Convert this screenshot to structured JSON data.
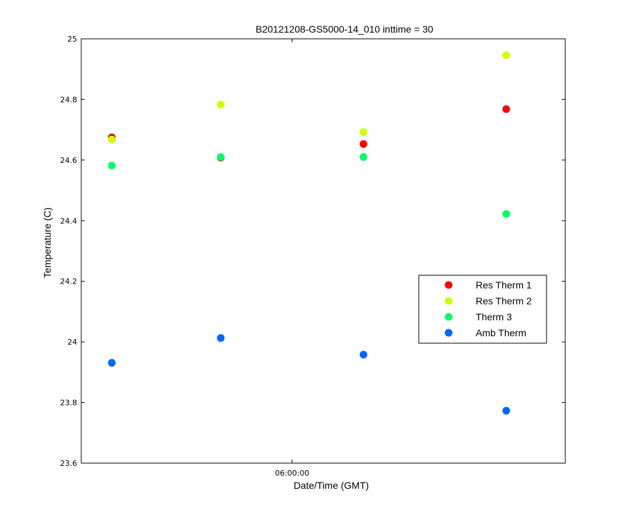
{
  "chart_data": {
    "type": "scatter",
    "title": "B20121208-GS5000-14_010 inttime = 30",
    "xlabel": "Date/Time (GMT)",
    "ylabel": "Temperature (C)",
    "ylim": [
      23.6,
      25.0
    ],
    "yticks": [
      "23.6",
      "23.8",
      "24",
      "24.2",
      "24.4",
      "24.6",
      "24.8",
      "25"
    ],
    "xticks": [
      "06:00:00"
    ],
    "x": [
      "05:12:00",
      "05:41:00",
      "06:19:00",
      "06:57:00"
    ],
    "grid": false,
    "legend_position": "right",
    "series": [
      {
        "name": "Res Therm 1",
        "color": "#ff0000",
        "values": [
          24.675,
          24.608,
          24.653,
          24.768
        ]
      },
      {
        "name": "Res Therm 2",
        "color": "#ccff00",
        "values": [
          24.668,
          24.783,
          24.692,
          24.946
        ]
      },
      {
        "name": "Therm 3",
        "color": "#00ff66",
        "values": [
          24.582,
          24.61,
          24.61,
          24.422
        ]
      },
      {
        "name": "Amb Therm",
        "color": "#0066ff",
        "values": [
          23.931,
          24.013,
          23.958,
          23.773
        ]
      }
    ]
  }
}
